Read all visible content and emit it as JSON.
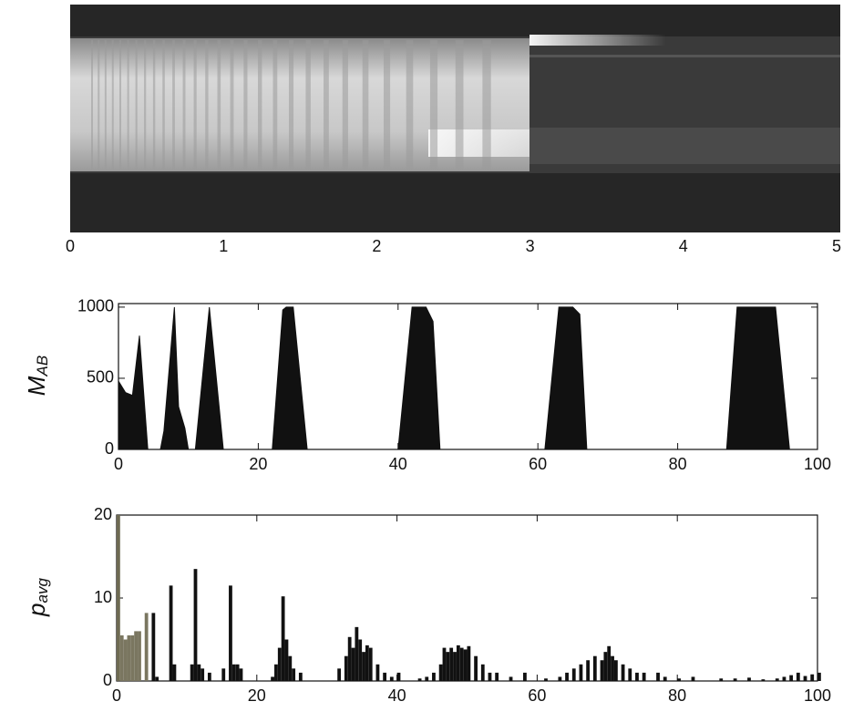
{
  "chart_data": [
    {
      "type": "image",
      "xlim": [
        0,
        5
      ],
      "xticks": [
        0,
        1,
        2,
        3,
        4,
        5
      ]
    },
    {
      "type": "area",
      "ylabel": {
        "main": "M",
        "sub": "AB"
      },
      "color": "#111111",
      "x": [
        0,
        1,
        2,
        3,
        4.2,
        6,
        6.5,
        8,
        8.6,
        9.5,
        10,
        11,
        13,
        15,
        22,
        23.5,
        24,
        25,
        27,
        40,
        42,
        44,
        45,
        46,
        61,
        63,
        65,
        66,
        67,
        87,
        88.5,
        94,
        96,
        100
      ],
      "values": [
        480,
        400,
        380,
        800,
        0,
        0,
        130,
        1000,
        300,
        150,
        0,
        0,
        1000,
        0,
        0,
        980,
        1000,
        1000,
        0,
        0,
        1000,
        1000,
        900,
        0,
        0,
        1000,
        1000,
        950,
        0,
        0,
        1000,
        1000,
        0,
        0
      ],
      "xlim": [
        0,
        100
      ],
      "xticks": [
        0,
        20,
        40,
        60,
        80,
        100
      ],
      "ylim": [
        0,
        1025
      ],
      "yticks": [
        0,
        500,
        1000
      ]
    },
    {
      "type": "bar",
      "ylabel": {
        "main": "p",
        "sub": "avg"
      },
      "x": [
        0,
        0.5,
        1,
        1.5,
        2,
        2.5,
        3,
        4,
        5,
        5.5,
        7.5,
        8,
        10.5,
        11,
        11.5,
        12,
        13,
        15,
        16,
        16.5,
        17,
        17.5,
        22,
        22.5,
        23,
        23.5,
        24,
        24.5,
        25,
        26,
        31.5,
        32.5,
        33,
        33.5,
        34,
        34.5,
        35,
        35.5,
        36,
        37,
        38,
        39,
        40,
        43,
        44,
        45,
        46,
        46.5,
        47,
        47.5,
        48,
        48.5,
        49,
        49.5,
        50,
        51,
        52,
        53,
        54,
        56,
        58,
        61,
        63,
        64,
        65,
        66,
        67,
        68,
        69,
        69.5,
        70,
        70.5,
        71,
        72,
        73,
        74,
        75,
        77,
        78,
        80,
        82,
        86,
        88,
        90,
        92,
        94,
        95,
        96,
        97,
        98,
        99,
        100
      ],
      "values": [
        20,
        5.5,
        5,
        5.5,
        5.5,
        6,
        6,
        8.2,
        8.2,
        0.5,
        11.5,
        2,
        2,
        13.5,
        2,
        1.5,
        1,
        1.5,
        11.5,
        2,
        2,
        1.5,
        0.5,
        2,
        4,
        10.2,
        5,
        3,
        1.5,
        1,
        1.5,
        3,
        5.3,
        4,
        6.5,
        5,
        3.5,
        4.3,
        4,
        2,
        1,
        0.5,
        1,
        0.3,
        0.5,
        1,
        2,
        4,
        3.5,
        4,
        3.5,
        4.3,
        4,
        3.8,
        4.2,
        3,
        2,
        1,
        1,
        0.5,
        1,
        0.3,
        0.5,
        1,
        1.5,
        2,
        2.5,
        3,
        2.5,
        3.5,
        4.2,
        3,
        2.5,
        2,
        1.5,
        1,
        1,
        1,
        0.5,
        0.3,
        0.5,
        0.3,
        0.3,
        0.4,
        0.2,
        0.3,
        0.5,
        0.7,
        1,
        0.6,
        0.8,
        1
      ],
      "colors": [
        "#6e6a52",
        "#7a7660",
        "#7a7660",
        "#7a7660",
        "#7a7660",
        "#7a7660",
        "#7a7660",
        "#7a7660",
        "#111111",
        "#111111",
        "#111111",
        "#111111",
        "#111111",
        "#111111",
        "#111111",
        "#111111",
        "#111111",
        "#111111",
        "#111111",
        "#111111",
        "#111111",
        "#111111",
        "#111111",
        "#111111",
        "#111111",
        "#111111",
        "#111111",
        "#111111",
        "#111111",
        "#111111",
        "#111111",
        "#111111",
        "#111111",
        "#111111",
        "#111111",
        "#111111",
        "#111111",
        "#111111",
        "#111111",
        "#111111",
        "#111111",
        "#111111",
        "#111111",
        "#111111",
        "#111111",
        "#111111",
        "#111111",
        "#111111",
        "#111111",
        "#111111",
        "#111111",
        "#111111",
        "#111111",
        "#111111",
        "#111111",
        "#111111",
        "#111111",
        "#111111",
        "#111111",
        "#111111",
        "#111111",
        "#111111",
        "#111111",
        "#111111",
        "#111111",
        "#111111",
        "#111111",
        "#111111",
        "#111111",
        "#111111",
        "#111111",
        "#111111",
        "#111111",
        "#111111",
        "#111111",
        "#111111",
        "#111111",
        "#111111",
        "#111111",
        "#111111",
        "#111111",
        "#111111",
        "#111111",
        "#111111",
        "#111111",
        "#111111",
        "#111111",
        "#111111",
        "#111111",
        "#111111",
        "#111111",
        "#111111"
      ],
      "xlim": [
        0,
        100
      ],
      "xticks": [
        0,
        20,
        40,
        60,
        80,
        100
      ],
      "ylim": [
        0,
        20
      ],
      "yticks": [
        0,
        10,
        20
      ]
    }
  ]
}
